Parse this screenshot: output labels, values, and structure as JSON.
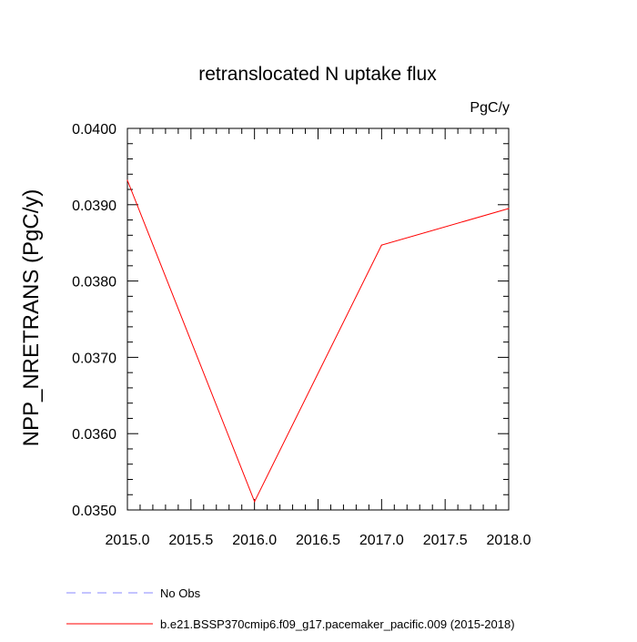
{
  "chart_data": {
    "type": "line",
    "title": "retranslocated N uptake flux",
    "units": "PgC/y",
    "ylabel": "NPP_NRETRANS  (PgC/y)",
    "xlabel": "",
    "xlim": [
      2015.0,
      2018.0
    ],
    "ylim": [
      0.035,
      0.04
    ],
    "x_ticks": [
      2015.0,
      2015.5,
      2016.0,
      2016.5,
      2017.0,
      2017.5,
      2018.0
    ],
    "x_tick_labels": [
      "2015.0",
      "2015.5",
      "2016.0",
      "2016.5",
      "2017.0",
      "2017.5",
      "2018.0"
    ],
    "y_ticks": [
      0.035,
      0.036,
      0.037,
      0.038,
      0.039,
      0.04
    ],
    "y_tick_labels": [
      "0.0350",
      "0.0360",
      "0.0370",
      "0.0380",
      "0.0390",
      "0.0400"
    ],
    "grid": false,
    "legend_placement": "bottom-left",
    "series": [
      {
        "name": "b.e21.BSSP370cmip6.f09_g17.pacemaker_pacific.009 (2015-2018)",
        "color": "#ff0000",
        "style": "solid",
        "x": [
          2015.0,
          2016.0,
          2017.0,
          2018.0
        ],
        "y": [
          0.03932,
          0.03511,
          0.03847,
          0.03895
        ]
      }
    ],
    "legend": [
      {
        "label": "No Obs",
        "color": "#8a8aff",
        "style": "dashed"
      },
      {
        "label": "b.e21.BSSP370cmip6.f09_g17.pacemaker_pacific.009 (2015-2018)",
        "color": "#ff0000",
        "style": "solid"
      }
    ]
  }
}
